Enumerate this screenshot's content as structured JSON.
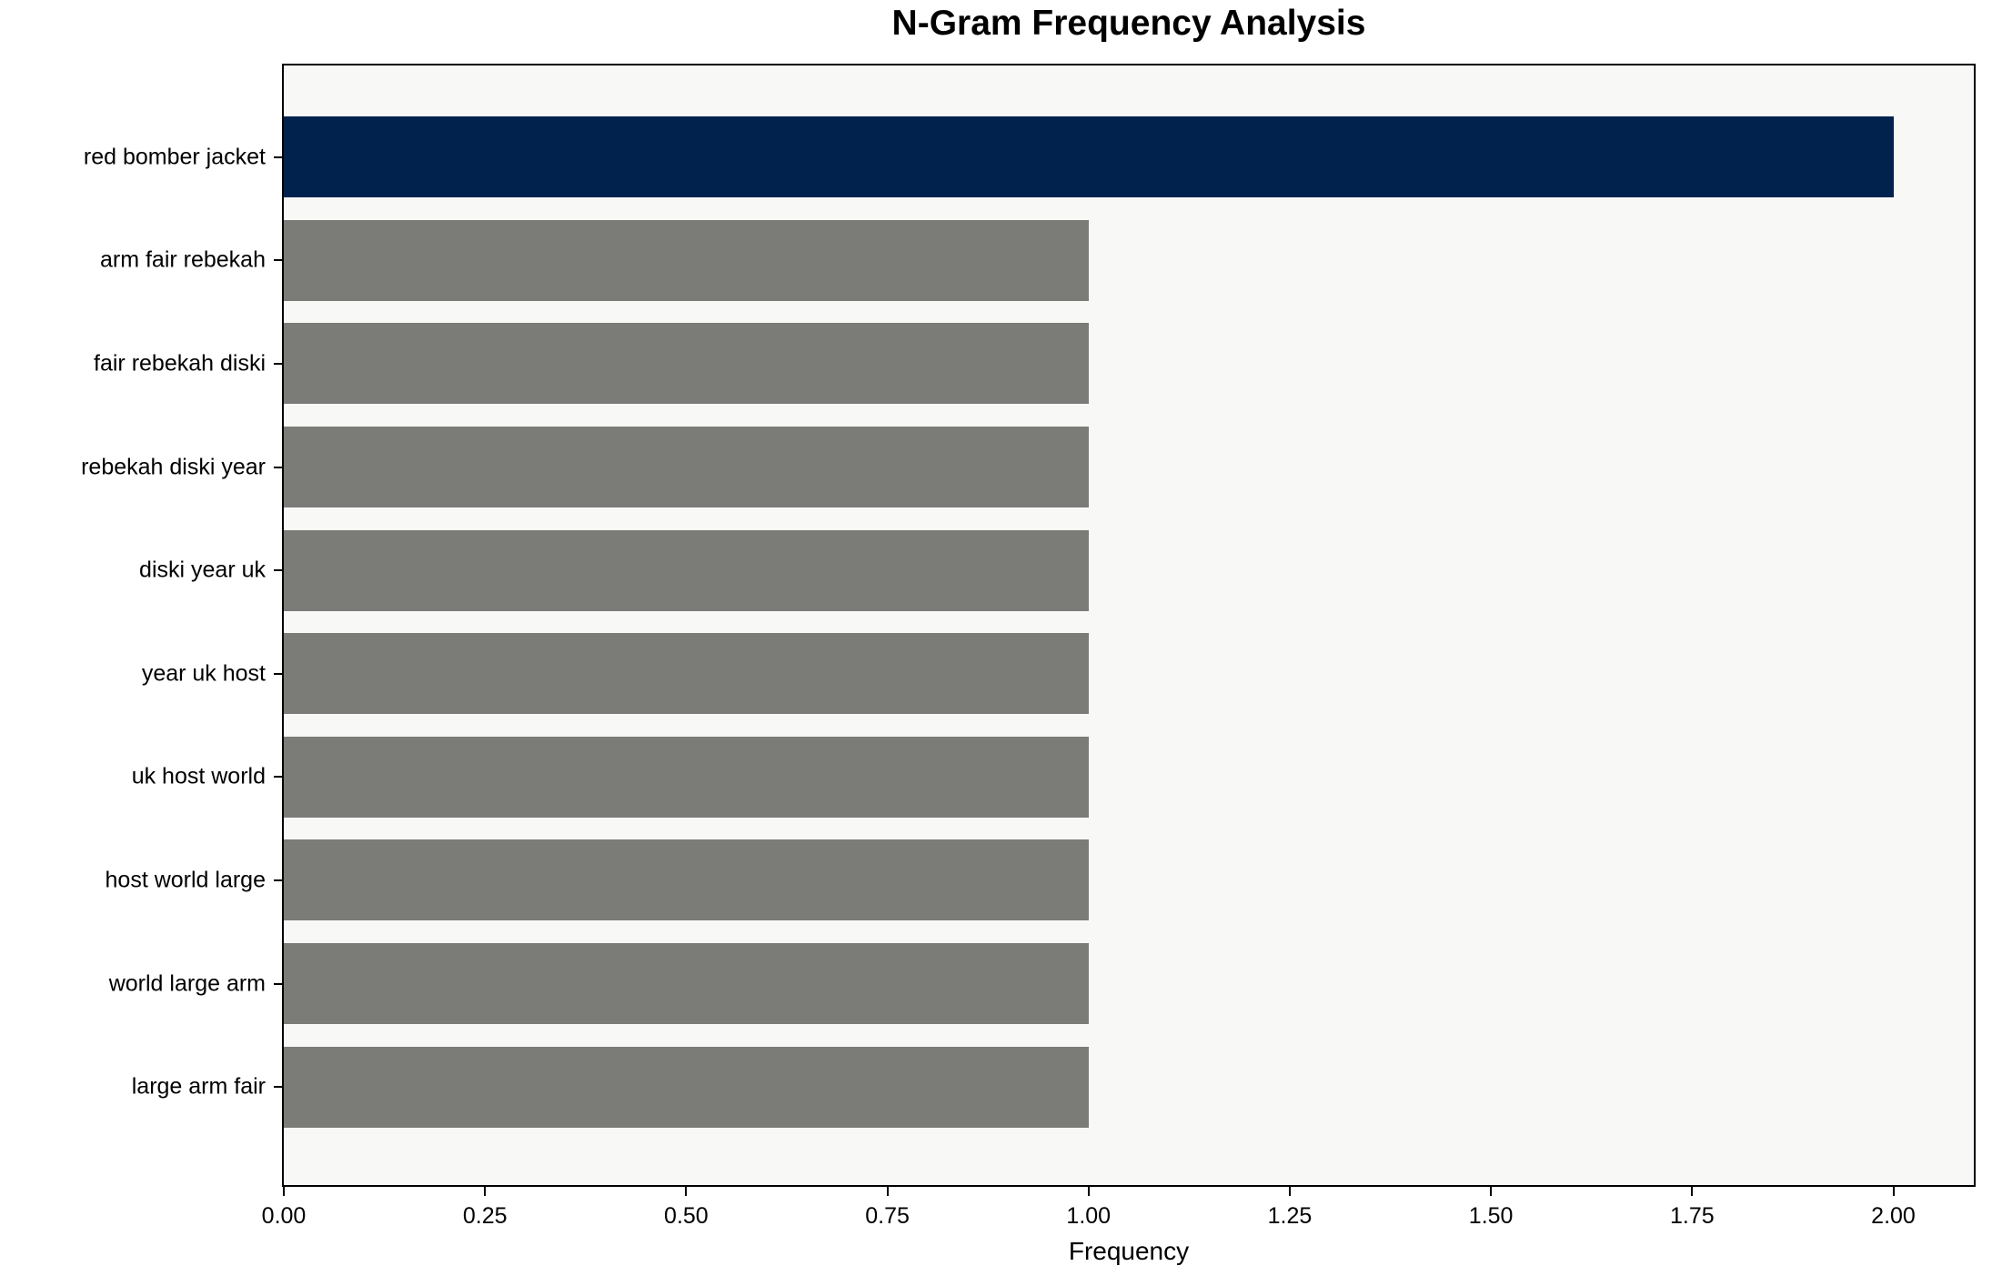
{
  "chart_data": {
    "type": "bar",
    "orientation": "horizontal",
    "title": "N-Gram Frequency Analysis",
    "xlabel": "Frequency",
    "ylabel": "",
    "categories": [
      "red bomber jacket",
      "arm fair rebekah",
      "fair rebekah diski",
      "rebekah diski year",
      "diski year uk",
      "year uk host",
      "uk host world",
      "host world large",
      "world large arm",
      "large arm fair"
    ],
    "values": [
      2,
      1,
      1,
      1,
      1,
      1,
      1,
      1,
      1,
      1
    ],
    "bar_colors": [
      "#01224d",
      "#7b7b78",
      "#7b7b78",
      "#7b7b78",
      "#7b7b78",
      "#7b7b78",
      "#7b7b78",
      "#7b7b78",
      "#7b7b78",
      "#7b7b78"
    ],
    "xlim": [
      0,
      2.1
    ],
    "x_tick_labels": [
      "0.00",
      "0.25",
      "0.50",
      "0.75",
      "1.00",
      "1.25",
      "1.50",
      "1.75",
      "2.00"
    ],
    "legend": null,
    "grid": false
  },
  "colors": {
    "figure_background": "#ffffff",
    "plot_background": "#f8f8f7",
    "spine": "#000000",
    "text": "#000000",
    "highlight_bar": "#01224d",
    "default_bar": "#7b7b78"
  }
}
